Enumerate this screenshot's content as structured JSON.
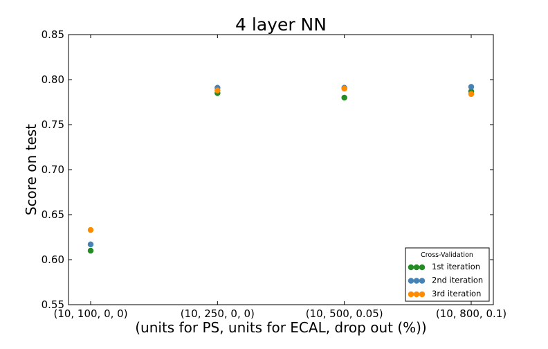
{
  "chart_data": {
    "type": "scatter",
    "title": "4 layer NN",
    "xlabel": "(units for PS, units for ECAL, drop out (%))",
    "ylabel": "Score on test",
    "categories": [
      "(10, 100, 0, 0)",
      "(10, 250, 0, 0)",
      "(10, 500, 0.05)",
      "(10, 800, 0.1)"
    ],
    "ylim": [
      0.55,
      0.85
    ],
    "yticks": [
      "0.55",
      "0.60",
      "0.65",
      "0.70",
      "0.75",
      "0.80",
      "0.85"
    ],
    "grid": false,
    "legend": {
      "title": "Cross-Validation",
      "position": "bottom-right"
    },
    "series": [
      {
        "name": "1st iteration",
        "color": "#228b22",
        "values": [
          0.61,
          0.785,
          0.78,
          0.787
        ]
      },
      {
        "name": "2nd iteration",
        "color": "#4682b4",
        "values": [
          0.617,
          0.791,
          0.791,
          0.792
        ]
      },
      {
        "name": "3rd iteration",
        "color": "#ff8c00",
        "values": [
          0.633,
          0.788,
          0.79,
          0.784
        ]
      }
    ]
  }
}
